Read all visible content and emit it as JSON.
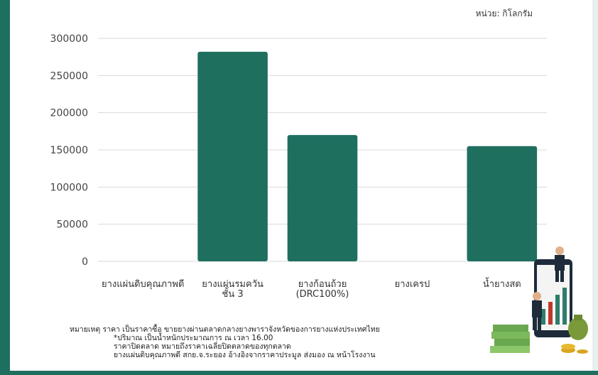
{
  "unit_label": "หน่วย: กิโลกรัม",
  "chart_data": {
    "type": "bar",
    "categories": [
      [
        "ยางแผ่นดิบคุณภาพดี"
      ],
      [
        "ยางแผ่นรมควัน",
        "ชั้น 3"
      ],
      [
        "ยางก้อนถ้วย",
        "(DRC100%)"
      ],
      [
        "ยางเครป"
      ],
      [
        "น้ำยางสด"
      ]
    ],
    "values": [
      0,
      282000,
      170000,
      0,
      155000
    ],
    "ylim": [
      0,
      300000
    ],
    "yticks": [
      0,
      50000,
      100000,
      150000,
      200000,
      250000,
      300000
    ],
    "grid": true,
    "bar_color": "#1f6f5f"
  },
  "notes": [
    "หมายเหตุ ราคา เป็นราคาซื้อ ขายยางผ่านตลาดกลางยางพาราจังหวัดของการยางแห่งประเทศไทย",
    "*ปริมาณ เป็นน้ำหนักประมาณการ ณ เวลา 16.00",
    "ราคาปิดตลาด หมายถึงราคาเฉลี่ยปิดตลาดของทุกตลาด",
    "ยางแผ่นดิบคุณภาพดี สกย.จ.ระยอง อ้างอิงจากราคาประมูล ส่งมอง ณ หน้าโรงงาน"
  ]
}
